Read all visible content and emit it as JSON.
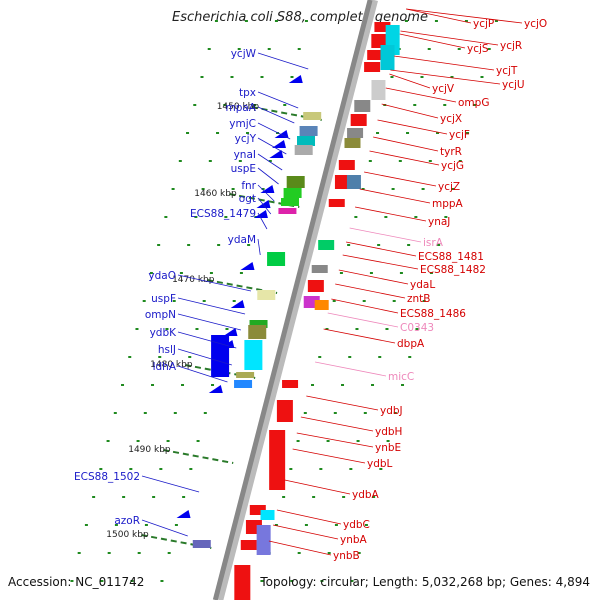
{
  "title": "Escherichia coli S88, complete genome",
  "footer": {
    "accession": "Accession: NC_011742",
    "topology": "Topology: circular; Length: 5,032,268 bp; Genes: 4,894"
  },
  "colors": {
    "left_label": "#1a1ac8",
    "right_label": "#d40000",
    "rna_label": "#ee88bb",
    "backbone": "#888888"
  },
  "kbp_ticks": [
    {
      "label": "1450 kbp"
    },
    {
      "label": "1460 kbp"
    },
    {
      "label": "1470 kbp"
    },
    {
      "label": "1480 kbp"
    },
    {
      "label": "1490 kbp"
    },
    {
      "label": "1500 kbp"
    }
  ],
  "left_genes": [
    {
      "label": "ycjW"
    },
    {
      "label": "tpx"
    },
    {
      "label": "mpaA"
    },
    {
      "label": "ymjC"
    },
    {
      "label": "ycjY"
    },
    {
      "label": "ynaI"
    },
    {
      "label": "uspE"
    },
    {
      "label": "fnr"
    },
    {
      "label": "ogt"
    },
    {
      "label": "ECS88_1479"
    },
    {
      "label": "ydaM"
    },
    {
      "label": "ydaO"
    },
    {
      "label": "uspF"
    },
    {
      "label": "ompN"
    },
    {
      "label": "ydbK"
    },
    {
      "label": "hslJ"
    },
    {
      "label": "ldhA"
    },
    {
      "label": "ECS88_1502"
    },
    {
      "label": "azoR"
    }
  ],
  "right_genes": [
    {
      "label": "ycjP"
    },
    {
      "label": "ycjO"
    },
    {
      "label": "ycjR"
    },
    {
      "label": "ycjS"
    },
    {
      "label": "ycjT"
    },
    {
      "label": "ycjU"
    },
    {
      "label": "ycjV"
    },
    {
      "label": "ompG"
    },
    {
      "label": "ycjX"
    },
    {
      "label": "ycjF"
    },
    {
      "label": "tyrR"
    },
    {
      "label": "ycjG"
    },
    {
      "label": "ycjZ"
    },
    {
      "label": "mppA"
    },
    {
      "label": "ynaJ"
    },
    {
      "label": "isrA",
      "rna": true
    },
    {
      "label": "ECS88_1481"
    },
    {
      "label": "ECS88_1482"
    },
    {
      "label": "ydaL"
    },
    {
      "label": "zntB"
    },
    {
      "label": "ECS88_1486"
    },
    {
      "label": "C0343",
      "rna": true
    },
    {
      "label": "dbpA"
    },
    {
      "label": "micC",
      "rna": true
    },
    {
      "label": "ydbJ"
    },
    {
      "label": "ydbH"
    },
    {
      "label": "ynbE"
    },
    {
      "label": "ydbL"
    },
    {
      "label": "ydbA"
    },
    {
      "label": "ydbC"
    },
    {
      "label": "ynbA"
    },
    {
      "label": "ynbB"
    }
  ]
}
